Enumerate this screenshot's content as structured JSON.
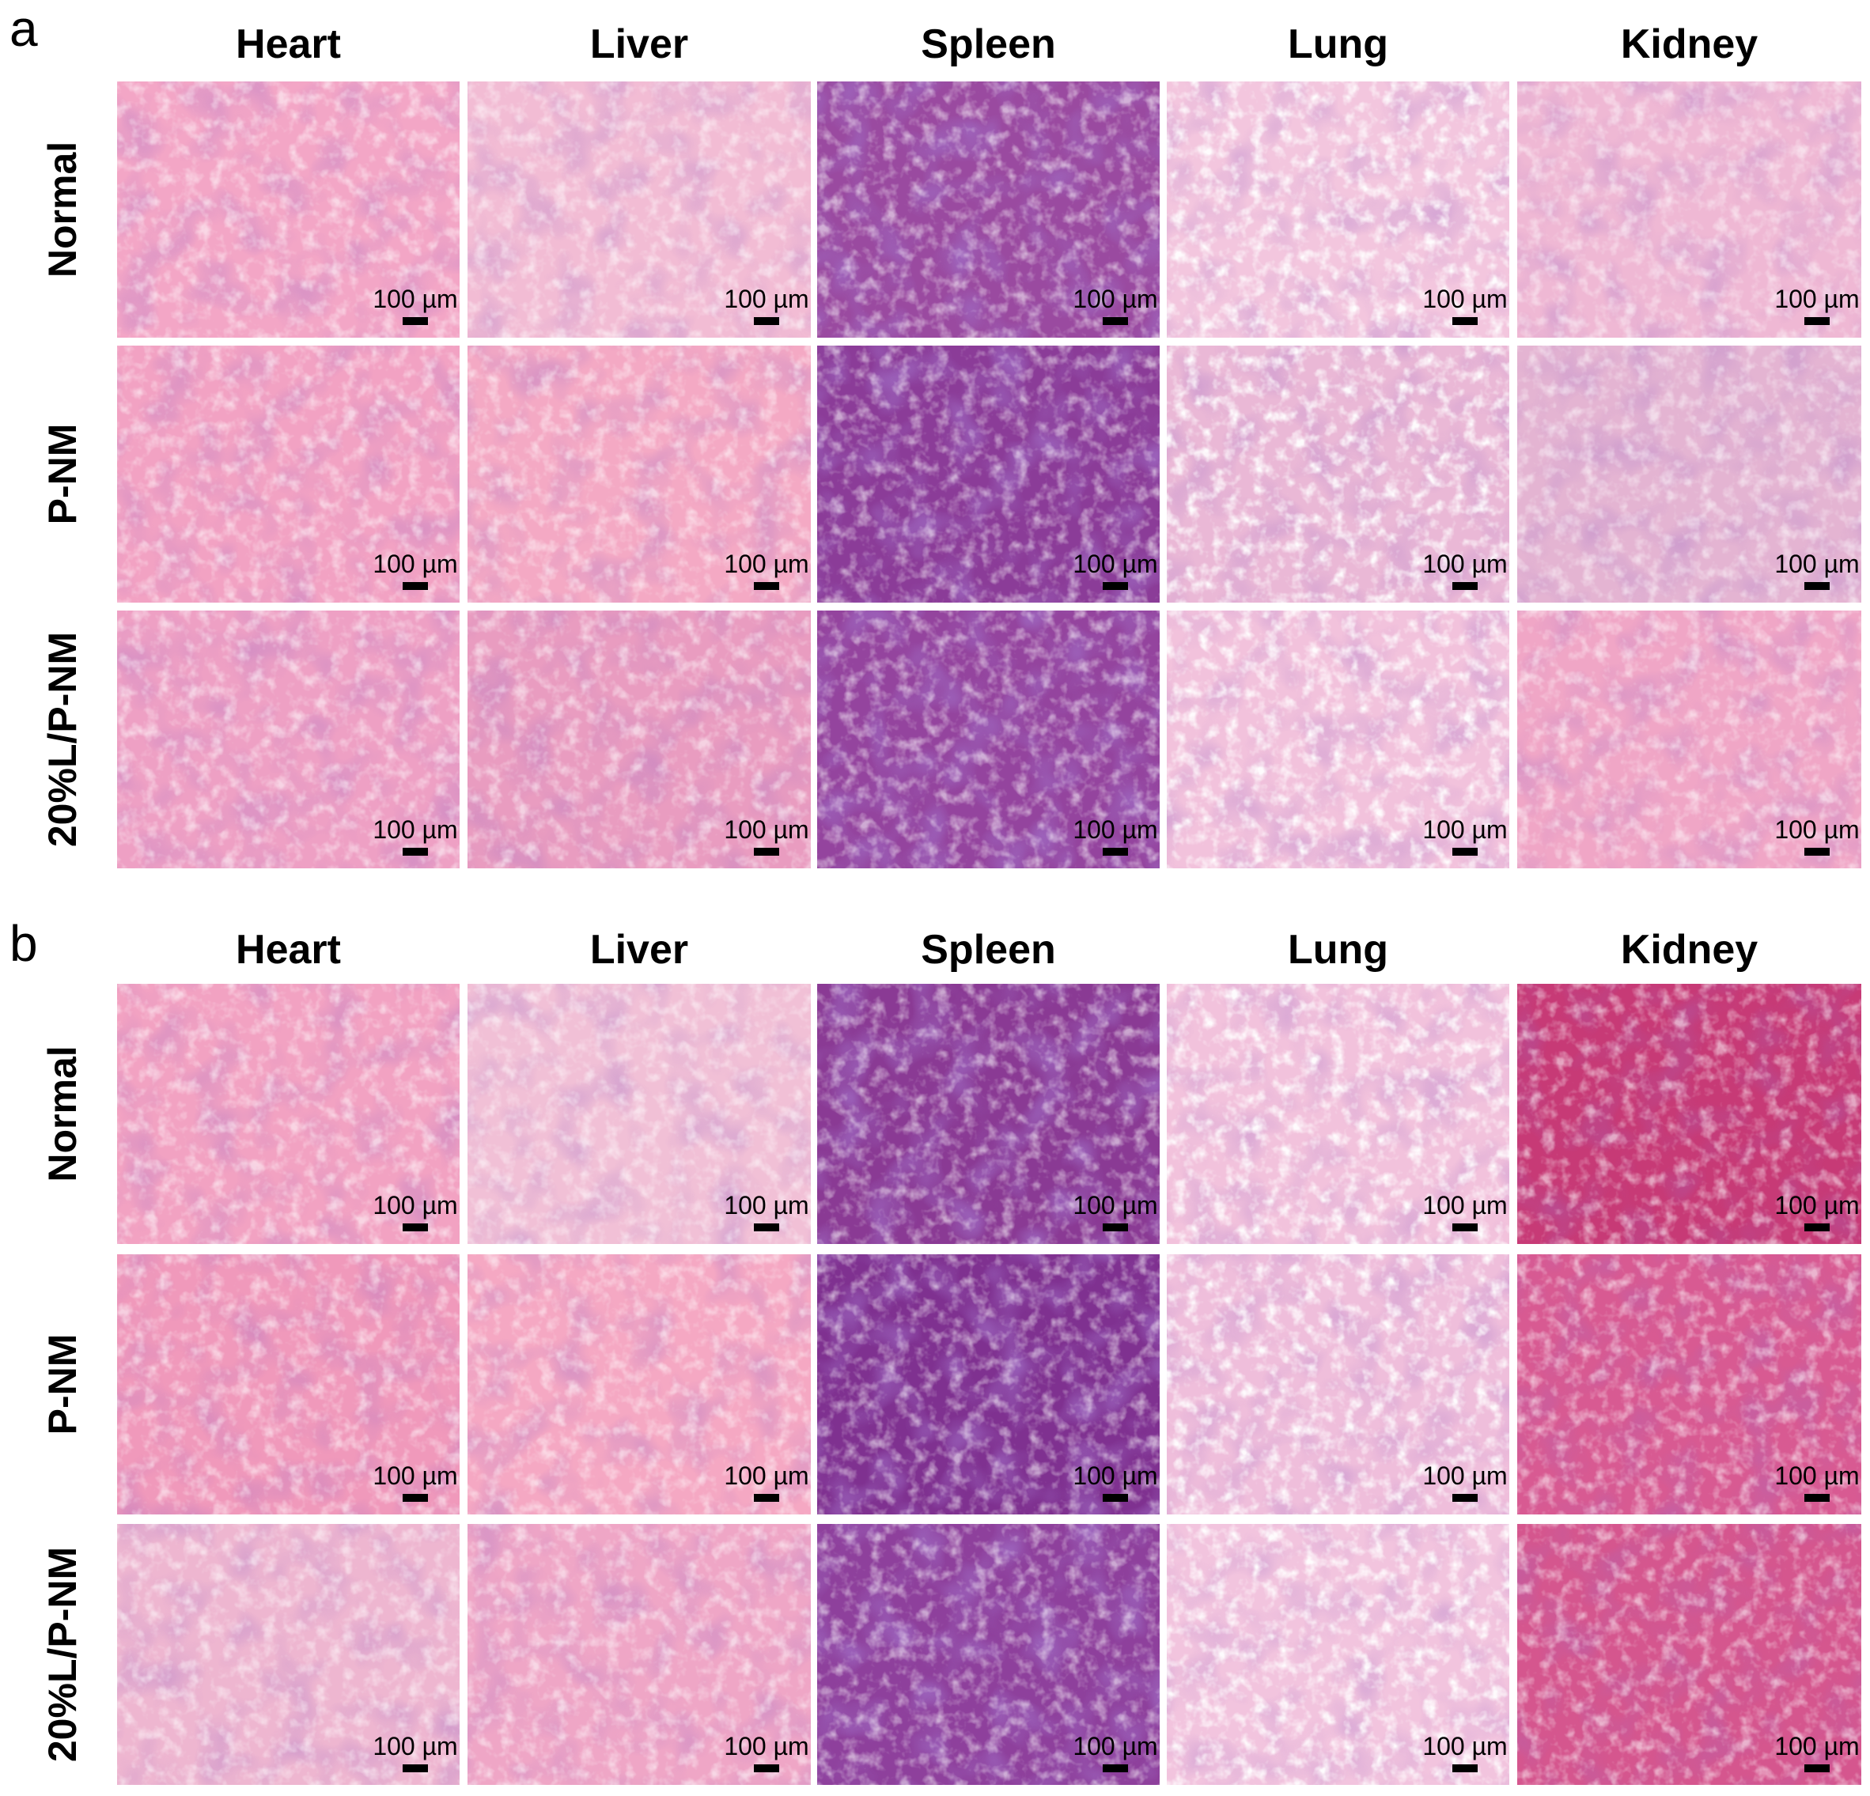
{
  "panels": [
    {
      "label": "a",
      "columns": [
        "Heart",
        "Liver",
        "Spleen",
        "Lung",
        "Kidney"
      ],
      "rows": [
        {
          "label": "Normal",
          "scale_bars": [
            "100 µm",
            "100 µm",
            "100 µm",
            "100 µm",
            "100 µm"
          ]
        },
        {
          "label": "P-NM",
          "scale_bars": [
            "100 µm",
            "100 µm",
            "100 µm",
            "100 µm",
            "100 µm"
          ]
        },
        {
          "label": "20%L/P-NM",
          "scale_bars": [
            "100 µm",
            "100 µm",
            "100 µm",
            "100 µm",
            "100 µm"
          ]
        }
      ]
    },
    {
      "label": "b",
      "columns": [
        "Heart",
        "Liver",
        "Spleen",
        "Lung",
        "Kidney"
      ],
      "rows": [
        {
          "label": "Normal",
          "scale_bars": [
            "100 µm",
            "100 µm",
            "100 µm",
            "100 µm",
            "100 µm"
          ]
        },
        {
          "label": "P-NM",
          "scale_bars": [
            "100 µm",
            "100 µm",
            "100 µm",
            "100 µm",
            "100 µm"
          ]
        },
        {
          "label": "20%L/P-NM",
          "scale_bars": [
            "100 µm",
            "100 µm",
            "100 µm",
            "100 µm",
            "100 µm"
          ]
        }
      ]
    }
  ]
}
